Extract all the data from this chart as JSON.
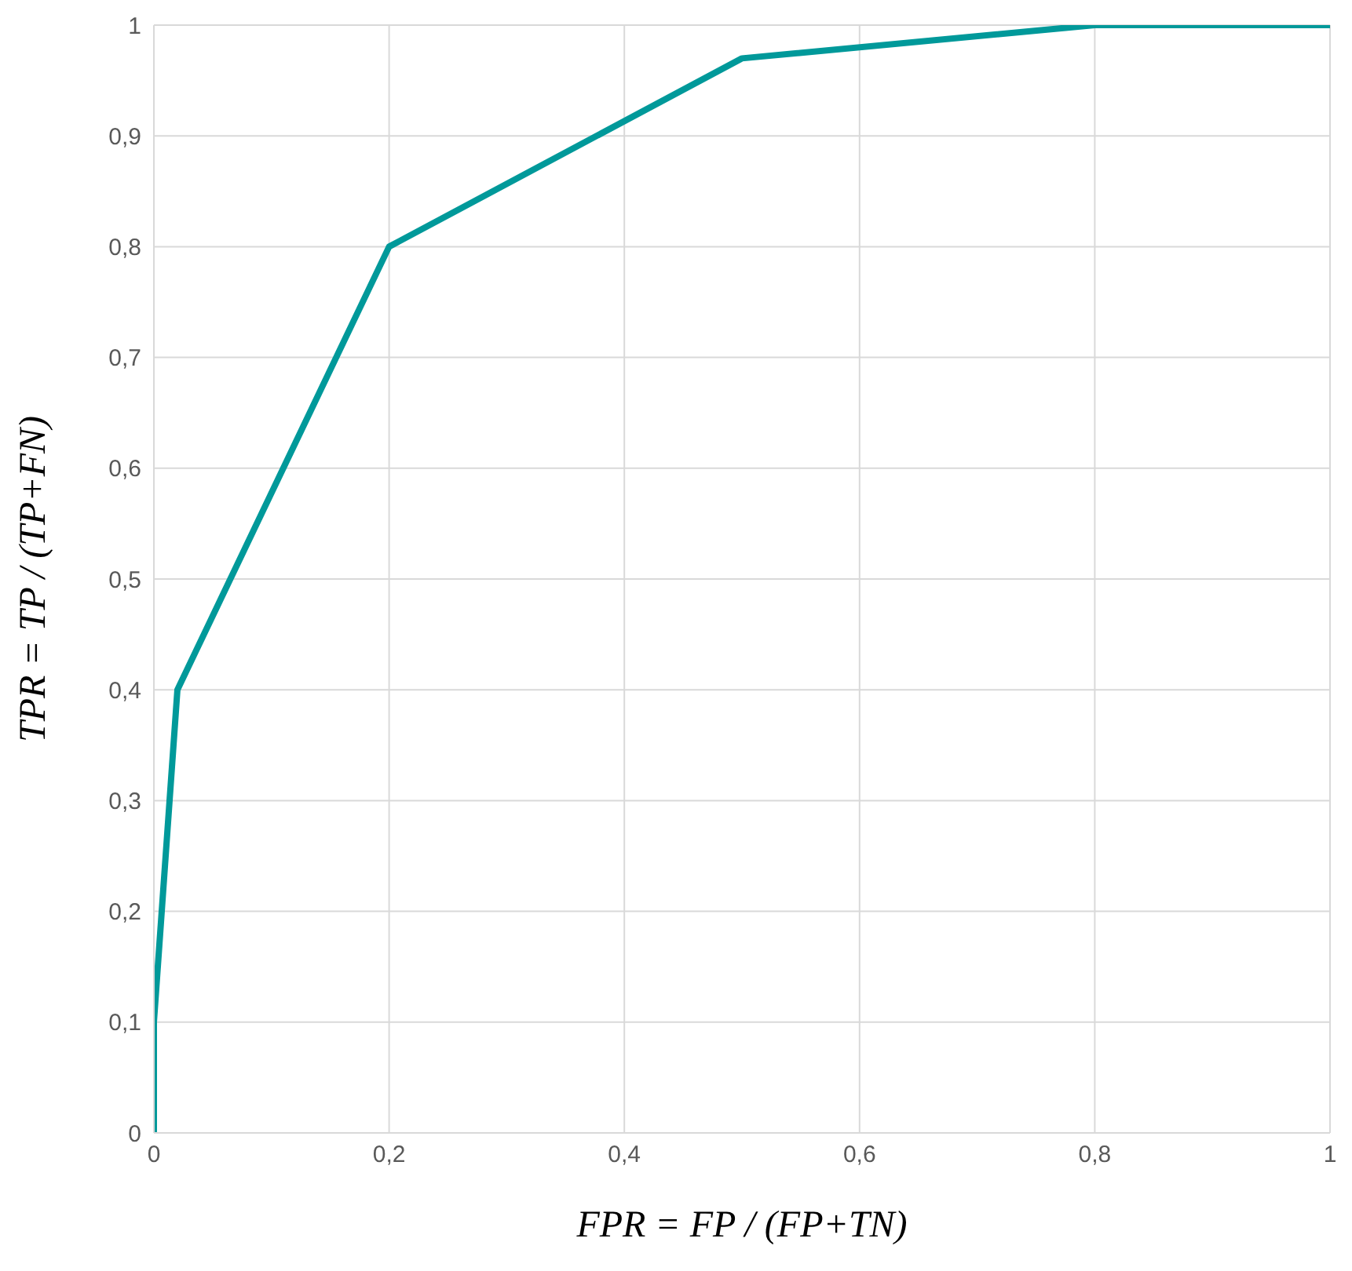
{
  "chart_data": {
    "type": "line",
    "xlabel": "FPR = FP / (FP+TN)",
    "ylabel": "TPR = TP / (TP+FN)",
    "x": [
      0,
      0,
      0.02,
      0.2,
      0.5,
      0.8,
      1
    ],
    "series": [
      {
        "color": "#00999a",
        "values": [
          0,
          0.1,
          0.4,
          0.8,
          0.97,
          1,
          1
        ]
      }
    ],
    "xlim": [
      0,
      1
    ],
    "ylim": [
      0,
      1
    ],
    "xticks": [
      0,
      {
        "value": 0.2,
        "label": "0,2"
      },
      {
        "value": 0.4,
        "label": "0,4"
      },
      {
        "value": 0.6,
        "label": "0,6"
      },
      {
        "value": 0.8,
        "label": "0,8"
      },
      1
    ],
    "yticks": [
      0,
      {
        "value": 0.1,
        "label": "0,1"
      },
      {
        "value": 0.2,
        "label": "0,2"
      },
      {
        "value": 0.3,
        "label": "0,3"
      },
      {
        "value": 0.4,
        "label": "0,4"
      },
      {
        "value": 0.5,
        "label": "0,5"
      },
      {
        "value": 0.6,
        "label": "0,6"
      },
      {
        "value": 0.7,
        "label": "0,7"
      },
      {
        "value": 0.8,
        "label": "0,8"
      },
      {
        "value": 0.9,
        "label": "0,9"
      },
      1
    ],
    "grid": true,
    "marker": "none",
    "line_style": "solid",
    "legend": false
  }
}
